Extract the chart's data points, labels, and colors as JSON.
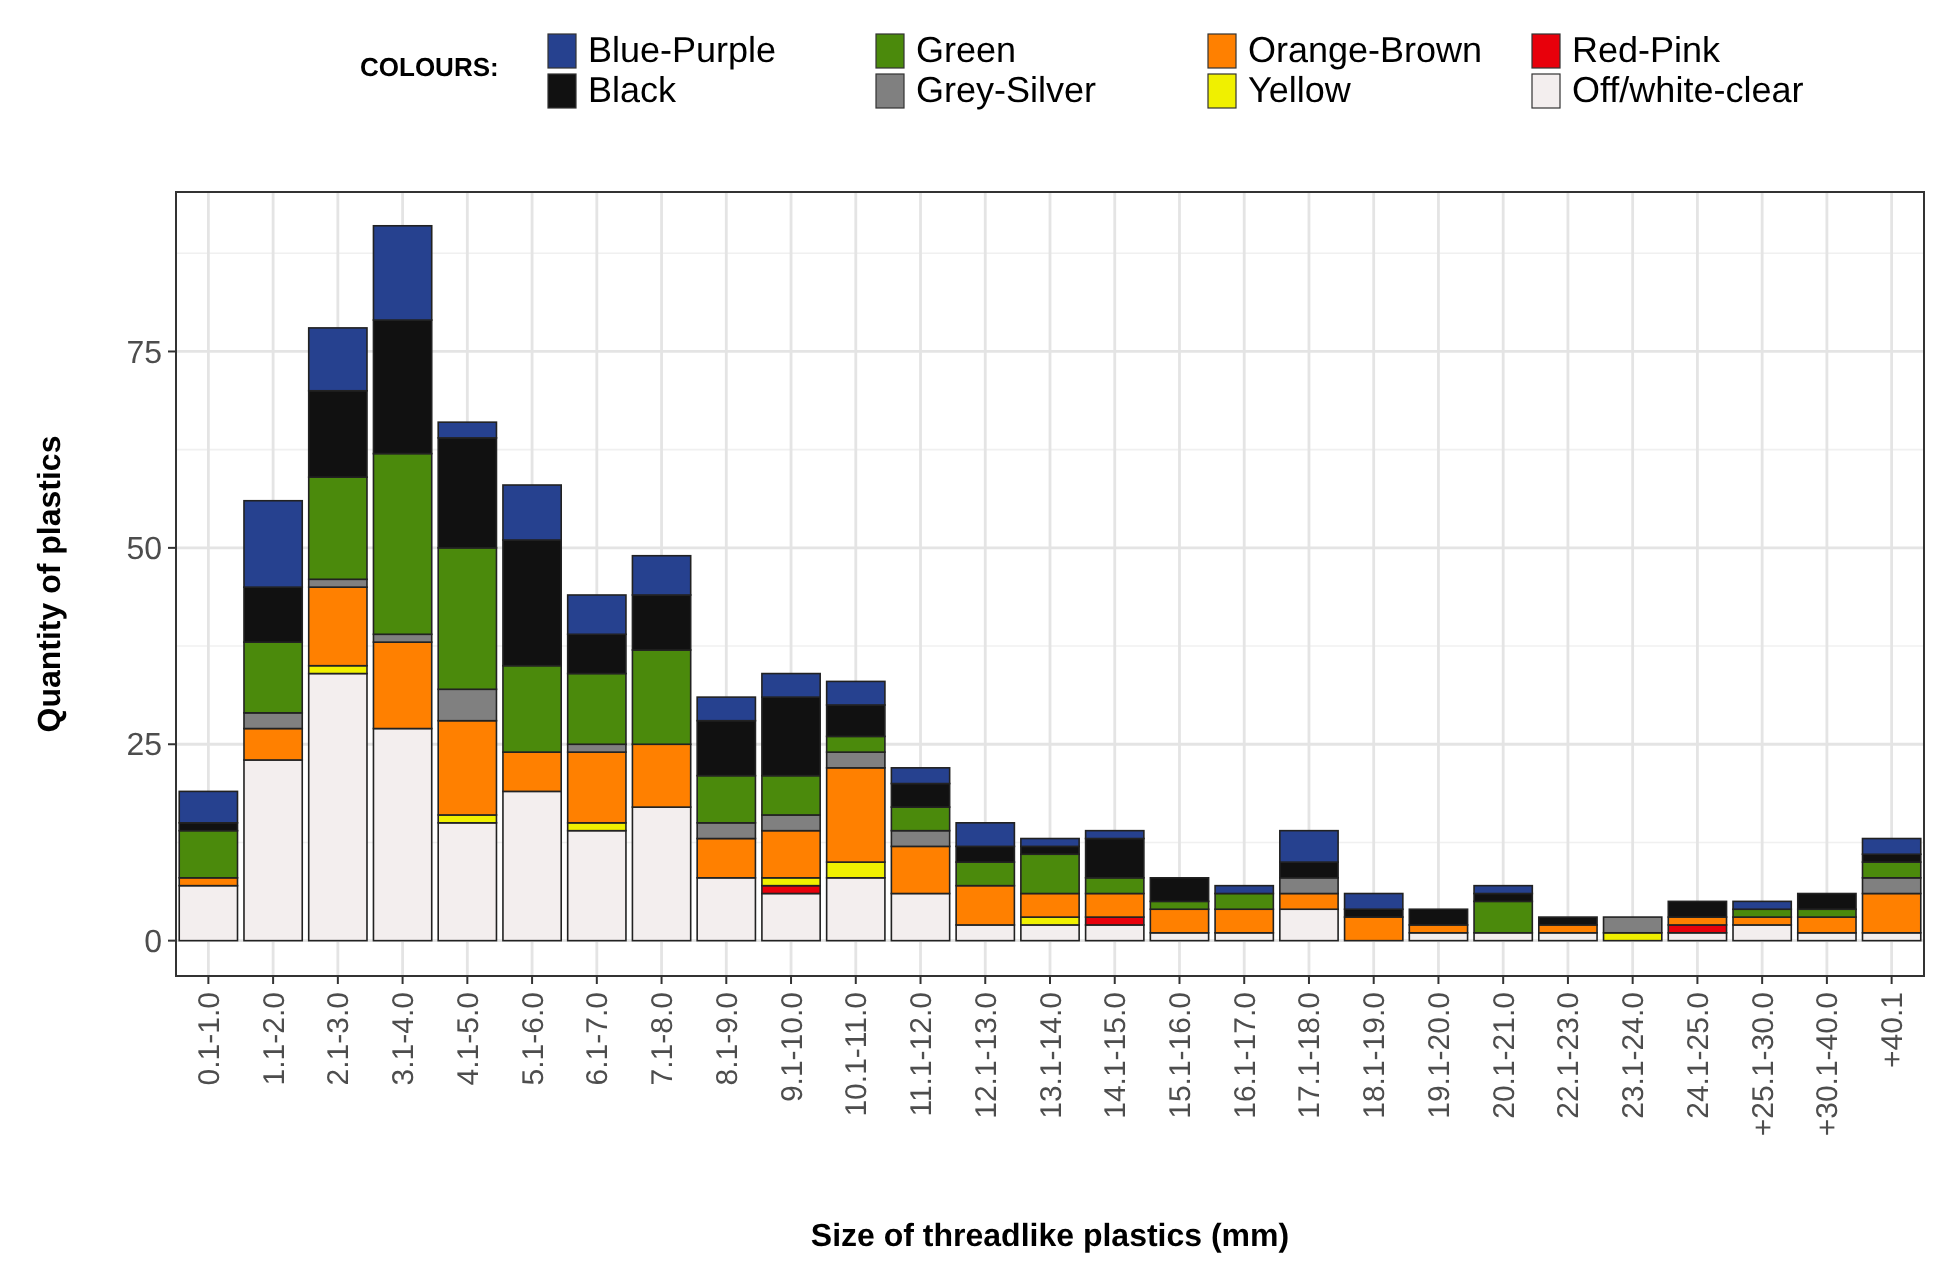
{
  "chart_data": {
    "type": "bar",
    "stacked": true,
    "xlabel": "Size of threadlike plastics (mm)",
    "ylabel": "Quantity of plastics",
    "legend_title": "COLOURS:",
    "legend": "top",
    "grid": true,
    "categories": [
      "0.1-1.0",
      "1.1-2.0",
      "2.1-3.0",
      "3.1-4.0",
      "4.1-5.0",
      "5.1-6.0",
      "6.1-7.0",
      "7.1-8.0",
      "8.1-9.0",
      "9.1-10.0",
      "10.1-11.0",
      "11.1-12.0",
      "12.1-13.0",
      "13.1-14.0",
      "14.1-15.0",
      "15.1-16.0",
      "16.1-17.0",
      "17.1-18.0",
      "18.1-19.0",
      "19.1-20.0",
      "20.1-21.0",
      "22.1-23.0",
      "23.1-24.0",
      "24.1-25.0",
      "+25.1-30.0",
      "+30.1-40.0",
      "+40.1"
    ],
    "ylim": [
      -4.5,
      95.3
    ],
    "yticks": [
      0,
      25,
      50,
      75
    ],
    "series": [
      {
        "name": "Off/white-clear",
        "color": "#f3eeee",
        "values": [
          7,
          23,
          34,
          27,
          15,
          19,
          14,
          17,
          8,
          6,
          8,
          6,
          2,
          2,
          2,
          1,
          1,
          4,
          0,
          1,
          1,
          1,
          0,
          1,
          2,
          1,
          1
        ]
      },
      {
        "name": "Red-Pink",
        "color": "#e8000b",
        "values": [
          0,
          0,
          0,
          0,
          0,
          0,
          0,
          0,
          0,
          1,
          0,
          0,
          0,
          0,
          1,
          0,
          0,
          0,
          0,
          0,
          0,
          0,
          0,
          1,
          0,
          0,
          0
        ]
      },
      {
        "name": "Yellow",
        "color": "#f0f000",
        "values": [
          0,
          0,
          1,
          0,
          1,
          0,
          1,
          0,
          0,
          1,
          2,
          0,
          0,
          1,
          0,
          0,
          0,
          0,
          0,
          0,
          0,
          0,
          1,
          0,
          0,
          0,
          0
        ]
      },
      {
        "name": "Orange-Brown",
        "color": "#ff8000",
        "values": [
          1,
          4,
          10,
          11,
          12,
          5,
          9,
          8,
          5,
          6,
          12,
          6,
          5,
          3,
          3,
          3,
          3,
          2,
          3,
          1,
          0,
          1,
          0,
          1,
          1,
          2,
          5
        ]
      },
      {
        "name": "Grey-Silver",
        "color": "#808080",
        "values": [
          0,
          2,
          1,
          1,
          4,
          0,
          1,
          0,
          2,
          2,
          2,
          2,
          0,
          0,
          0,
          0,
          0,
          2,
          0,
          0,
          0,
          0,
          2,
          0,
          0,
          0,
          2
        ]
      },
      {
        "name": "Green",
        "color": "#4b8a0c",
        "values": [
          6,
          9,
          13,
          23,
          18,
          11,
          9,
          12,
          6,
          5,
          2,
          3,
          3,
          5,
          2,
          1,
          2,
          0,
          0,
          0,
          4,
          0,
          0,
          0,
          1,
          1,
          2
        ]
      },
      {
        "name": "Black",
        "color": "#111111",
        "values": [
          1,
          7,
          11,
          17,
          14,
          16,
          5,
          7,
          7,
          10,
          4,
          3,
          2,
          1,
          5,
          3,
          0,
          2,
          1,
          2,
          1,
          1,
          0,
          2,
          0,
          2,
          1
        ]
      },
      {
        "name": "Blue-Purple",
        "color": "#26418f",
        "values": [
          4,
          11,
          8,
          12,
          2,
          7,
          5,
          5,
          3,
          3,
          3,
          2,
          3,
          1,
          1,
          0,
          1,
          4,
          2,
          0,
          1,
          0,
          0,
          0,
          1,
          0,
          2
        ]
      }
    ]
  }
}
